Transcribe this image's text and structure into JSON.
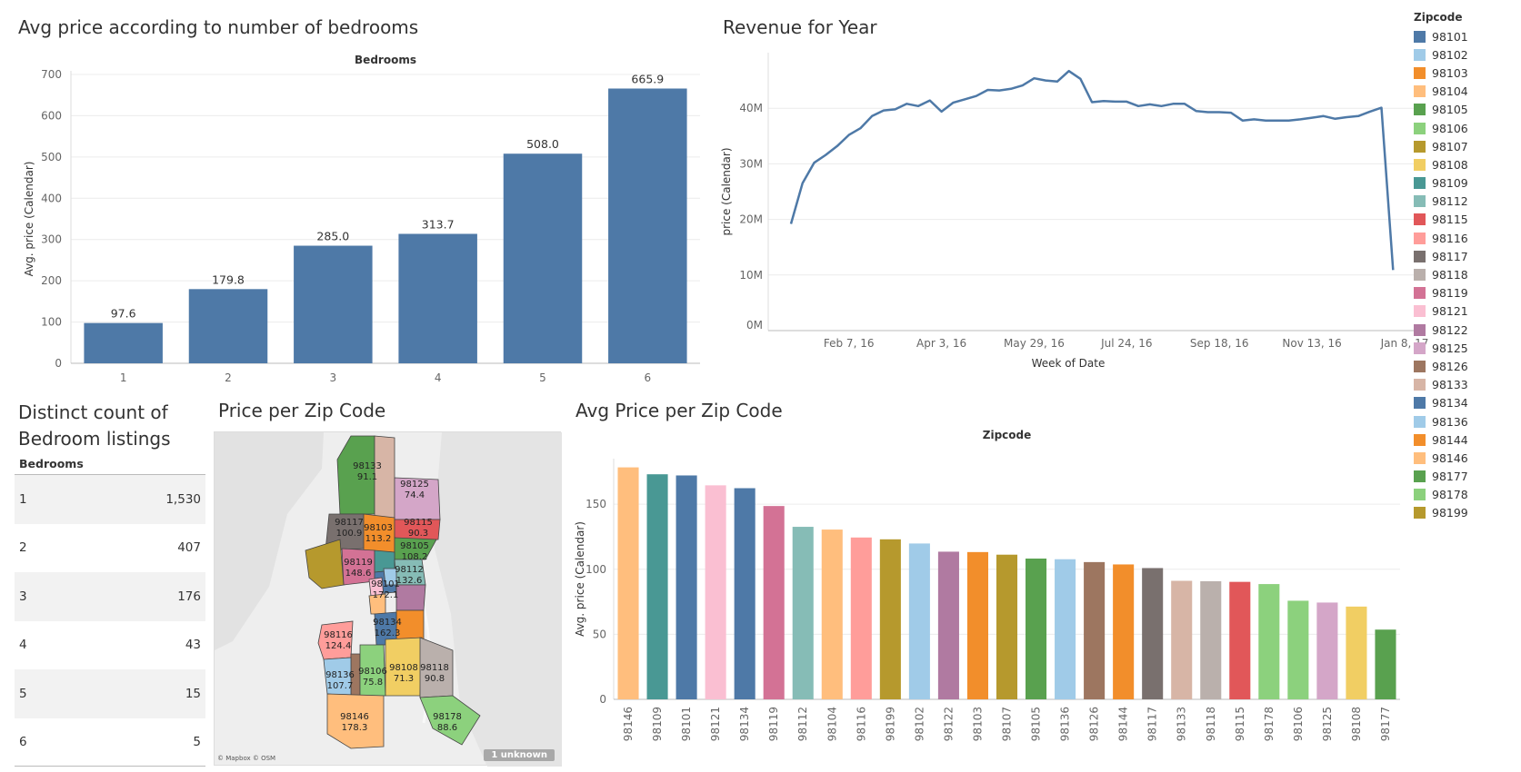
{
  "titles": {
    "bedrooms_chart": "Avg price according to number of bedrooms",
    "revenue_chart": "Revenue for Year",
    "count_table_line1": "Distinct count of",
    "count_table_line2": "Bedroom listings",
    "map": "Price per Zip Code",
    "zip_chart": "Avg Price per Zip Code"
  },
  "legend": {
    "title": "Zipcode",
    "items": [
      {
        "label": "98101",
        "color": "#4e79a7"
      },
      {
        "label": "98102",
        "color": "#a0cbe8"
      },
      {
        "label": "98103",
        "color": "#f28e2b"
      },
      {
        "label": "98104",
        "color": "#ffbe7d"
      },
      {
        "label": "98105",
        "color": "#59a14f"
      },
      {
        "label": "98106",
        "color": "#8cd17d"
      },
      {
        "label": "98107",
        "color": "#b6992d"
      },
      {
        "label": "98108",
        "color": "#f1ce63"
      },
      {
        "label": "98109",
        "color": "#499894"
      },
      {
        "label": "98112",
        "color": "#86bcb6"
      },
      {
        "label": "98115",
        "color": "#e15759"
      },
      {
        "label": "98116",
        "color": "#ff9d9a"
      },
      {
        "label": "98117",
        "color": "#79706e"
      },
      {
        "label": "98118",
        "color": "#bab0ac"
      },
      {
        "label": "98119",
        "color": "#d37295"
      },
      {
        "label": "98121",
        "color": "#fabfd2"
      },
      {
        "label": "98122",
        "color": "#b07aa1"
      },
      {
        "label": "98125",
        "color": "#d4a6c8"
      },
      {
        "label": "98126",
        "color": "#9d7660"
      },
      {
        "label": "98133",
        "color": "#d7b5a6"
      },
      {
        "label": "98134",
        "color": "#4e79a7"
      },
      {
        "label": "98136",
        "color": "#a0cbe8"
      },
      {
        "label": "98144",
        "color": "#f28e2b"
      },
      {
        "label": "98146",
        "color": "#ffbe7d"
      },
      {
        "label": "98177",
        "color": "#59a14f"
      },
      {
        "label": "98178",
        "color": "#8cd17d"
      },
      {
        "label": "98199",
        "color": "#b6992d"
      }
    ]
  },
  "count_table": {
    "header": "Bedrooms",
    "rows": [
      {
        "bedrooms": "1",
        "count": "1,530"
      },
      {
        "bedrooms": "2",
        "count": "407"
      },
      {
        "bedrooms": "3",
        "count": "176"
      },
      {
        "bedrooms": "4",
        "count": "43"
      },
      {
        "bedrooms": "5",
        "count": "15"
      },
      {
        "bedrooms": "6",
        "count": "5"
      }
    ]
  },
  "map": {
    "credit": "© Mapbox © OSM",
    "unknown_badge": "1 unknown",
    "regions": [
      {
        "zip": "98133",
        "value": "91.1"
      },
      {
        "zip": "98125",
        "value": "74.4"
      },
      {
        "zip": "98117",
        "value": "100.9"
      },
      {
        "zip": "98103",
        "value": "113.2"
      },
      {
        "zip": "98115",
        "value": "90.3"
      },
      {
        "zip": "98105",
        "value": "108.2"
      },
      {
        "zip": "98119",
        "value": "148.6"
      },
      {
        "zip": "98112",
        "value": "132.6"
      },
      {
        "zip": "98101",
        "value": "172.1"
      },
      {
        "zip": "98116",
        "value": "124.4"
      },
      {
        "zip": "98134",
        "value": "162.3"
      },
      {
        "zip": "98136",
        "value": "107.7"
      },
      {
        "zip": "98106",
        "value": "75.8"
      },
      {
        "zip": "98108",
        "value": "71.3"
      },
      {
        "zip": "98118",
        "value": "90.8"
      },
      {
        "zip": "98146",
        "value": "178.3"
      },
      {
        "zip": "98178",
        "value": "88.6"
      }
    ]
  },
  "chart_data": [
    {
      "id": "bedrooms",
      "type": "bar",
      "header": "Bedrooms",
      "title": "Avg price according to number of bedrooms",
      "ylabel": "Avg. price (Calendar)",
      "categories": [
        "1",
        "2",
        "3",
        "4",
        "5",
        "6"
      ],
      "values": [
        97.6,
        179.8,
        285.0,
        313.7,
        508.0,
        665.9
      ],
      "value_labels": [
        "97.6",
        "179.8",
        "285.0",
        "313.7",
        "508.0",
        "665.9"
      ],
      "ylim": [
        0,
        700
      ],
      "yticks": [
        0,
        100,
        200,
        300,
        400,
        500,
        600,
        700
      ],
      "color": "#4e79a7",
      "grid": true
    },
    {
      "id": "revenue",
      "type": "line",
      "title": "Revenue for Year",
      "xlabel": "Week of Date",
      "ylabel": "price (Calendar)",
      "x": [
        "2016-01-03",
        "2016-01-10",
        "2016-01-17",
        "2016-01-24",
        "2016-01-31",
        "2016-02-07",
        "2016-02-14",
        "2016-02-21",
        "2016-02-28",
        "2016-03-06",
        "2016-03-13",
        "2016-03-20",
        "2016-03-27",
        "2016-04-03",
        "2016-04-10",
        "2016-04-17",
        "2016-04-24",
        "2016-05-01",
        "2016-05-08",
        "2016-05-15",
        "2016-05-22",
        "2016-05-29",
        "2016-06-05",
        "2016-06-12",
        "2016-06-19",
        "2016-06-26",
        "2016-07-03",
        "2016-07-10",
        "2016-07-17",
        "2016-07-24",
        "2016-07-31",
        "2016-08-07",
        "2016-08-14",
        "2016-08-21",
        "2016-08-28",
        "2016-09-04",
        "2016-09-11",
        "2016-09-18",
        "2016-09-25",
        "2016-10-02",
        "2016-10-09",
        "2016-10-16",
        "2016-10-23",
        "2016-10-30",
        "2016-11-06",
        "2016-11-13",
        "2016-11-20",
        "2016-11-27",
        "2016-12-04",
        "2016-12-11",
        "2016-12-18",
        "2016-12-25",
        "2017-01-01"
      ],
      "values": [
        19.2,
        26.5,
        30.2,
        31.6,
        33.2,
        35.2,
        36.4,
        38.6,
        39.6,
        39.8,
        40.8,
        40.4,
        41.4,
        39.4,
        41.0,
        41.6,
        42.2,
        43.3,
        43.2,
        43.5,
        44.1,
        45.4,
        45.0,
        44.8,
        46.7,
        45.3,
        41.1,
        41.3,
        41.2,
        41.2,
        40.4,
        40.7,
        40.4,
        40.8,
        40.8,
        39.5,
        39.3,
        39.3,
        39.2,
        37.8,
        38.0,
        37.8,
        37.8,
        37.8,
        38.0,
        38.3,
        38.6,
        38.1,
        38.4,
        38.6,
        39.4,
        40.1,
        10.9
      ],
      "value_unit": "M",
      "ylim": [
        0,
        50
      ],
      "yticks": [
        0,
        10,
        20,
        30,
        40
      ],
      "ytick_labels": [
        "0M",
        "10M",
        "20M",
        "30M",
        "40M"
      ],
      "xticks": [
        "2016-02-07",
        "2016-04-03",
        "2016-05-29",
        "2016-07-24",
        "2016-09-18",
        "2016-11-13",
        "2017-01-08"
      ],
      "xtick_labels": [
        "Feb 7, 16",
        "Apr 3, 16",
        "May 29, 16",
        "Jul 24, 16",
        "Sep 18, 16",
        "Nov 13, 16",
        "Jan 8, 17"
      ],
      "color": "#4e79a7",
      "grid": true
    },
    {
      "id": "zipcodes",
      "type": "bar",
      "header": "Zipcode",
      "title": "Avg Price per Zip Code",
      "ylabel": "Avg. price (Calendar)",
      "categories": [
        "98146",
        "98109",
        "98101",
        "98121",
        "98134",
        "98119",
        "98112",
        "98104",
        "98116",
        "98199",
        "98102",
        "98122",
        "98103",
        "98107",
        "98105",
        "98136",
        "98126",
        "98144",
        "98117",
        "98133",
        "98118",
        "98115",
        "98178",
        "98106",
        "98125",
        "98108",
        "98177"
      ],
      "values": [
        178.3,
        173.0,
        172.1,
        164.5,
        162.3,
        148.6,
        132.6,
        130.5,
        124.4,
        123.0,
        119.8,
        113.5,
        113.2,
        111.2,
        108.2,
        107.7,
        105.5,
        103.7,
        100.9,
        91.1,
        90.8,
        90.3,
        88.6,
        75.8,
        74.4,
        71.3,
        53.6
      ],
      "colors": [
        "#ffbe7d",
        "#499894",
        "#4e79a7",
        "#fabfd2",
        "#4e79a7",
        "#d37295",
        "#86bcb6",
        "#ffbe7d",
        "#ff9d9a",
        "#b6992d",
        "#a0cbe8",
        "#b07aa1",
        "#f28e2b",
        "#b6992d",
        "#59a14f",
        "#a0cbe8",
        "#9d7660",
        "#f28e2b",
        "#79706e",
        "#d7b5a6",
        "#bab0ac",
        "#e15759",
        "#8cd17d",
        "#8cd17d",
        "#d4a6c8",
        "#f1ce63",
        "#59a14f"
      ],
      "ylim": [
        0,
        185
      ],
      "yticks": [
        0,
        50,
        100,
        150
      ],
      "grid": true
    }
  ]
}
